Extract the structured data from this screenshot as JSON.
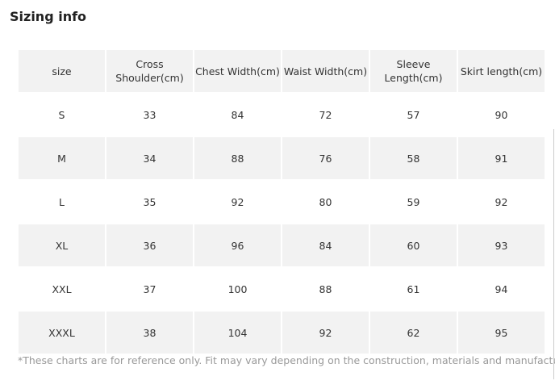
{
  "header": {
    "title": "Sizing info"
  },
  "table": {
    "columns": [
      "size",
      "Cross Shoulder(cm)",
      "Chest Width(cm)",
      "Waist Width(cm)",
      "Sleeve Length(cm)",
      "Skirt length(cm)"
    ],
    "rows": [
      [
        "S",
        33,
        84,
        72,
        57,
        90
      ],
      [
        "M",
        34,
        88,
        76,
        58,
        91
      ],
      [
        "L",
        35,
        92,
        80,
        59,
        92
      ],
      [
        "XL",
        36,
        96,
        84,
        60,
        93
      ],
      [
        "XXL",
        37,
        100,
        88,
        61,
        94
      ],
      [
        "XXXL",
        38,
        104,
        92,
        62,
        95
      ]
    ]
  },
  "footnote": "*These charts are for reference only. Fit may vary depending on the construction, materials and manufacturer."
}
